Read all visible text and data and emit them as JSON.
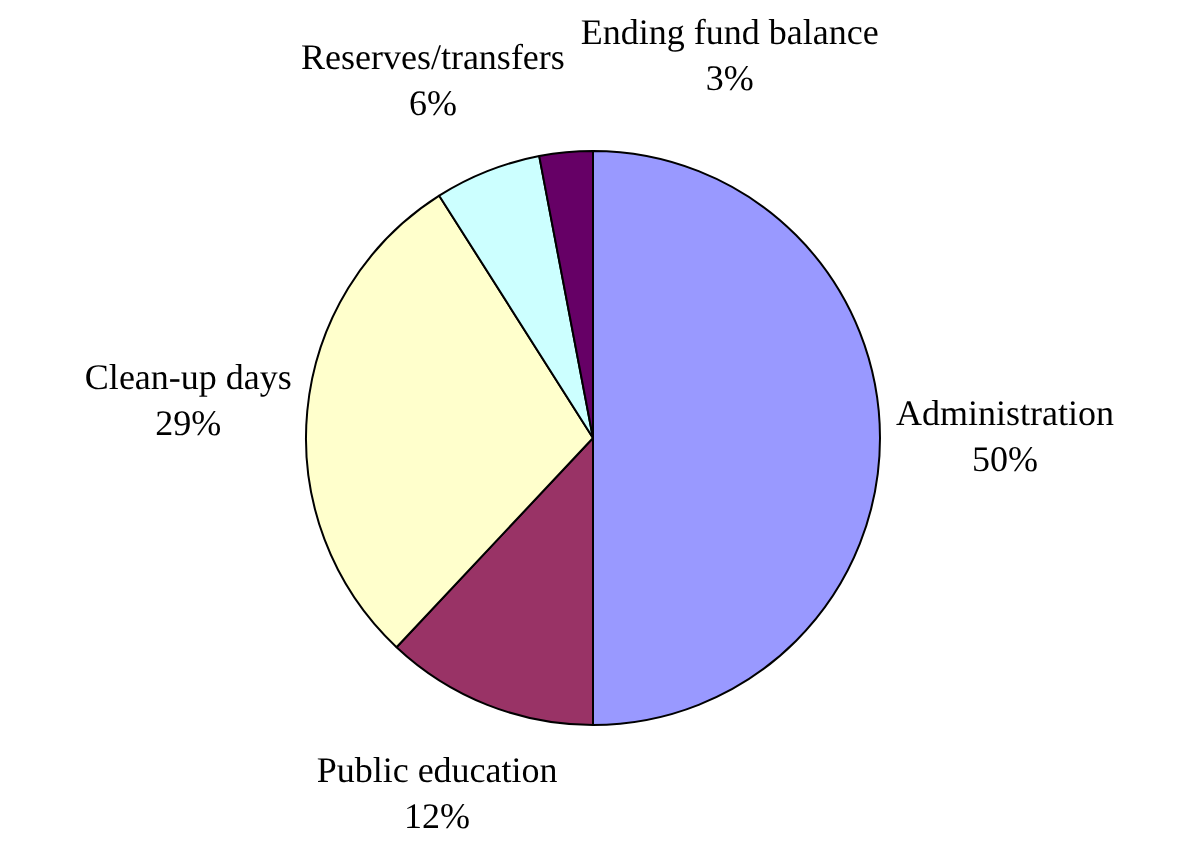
{
  "chart_data": {
    "type": "pie",
    "categories": [
      "Administration",
      "Public education",
      "Clean-up days",
      "Reserves/transfers",
      "Ending fund balance"
    ],
    "values": [
      50,
      12,
      29,
      6,
      3
    ],
    "value_labels": [
      "50%",
      "12%",
      "29%",
      "6%",
      "3%"
    ],
    "colors": [
      "#9999ff",
      "#993366",
      "#ffffcc",
      "#ccffff",
      "#660066"
    ],
    "legend": false
  }
}
